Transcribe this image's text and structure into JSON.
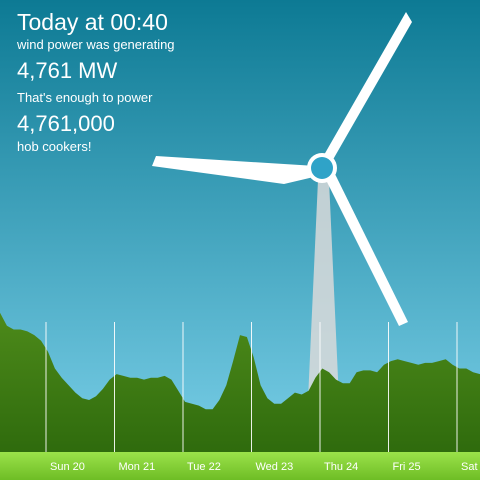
{
  "headline": {
    "time_label": "Today at 00:40",
    "generating_label": "wind power was generating",
    "power_value": "4,761 MW",
    "enough_label": "That's enough to power",
    "appliance_count": "4,761,000",
    "appliance_label": "hob cookers!"
  },
  "colors": {
    "sky_top": "#0d7a94",
    "sky_bottom": "#7fd3ec",
    "hill_top": "#4d8a1a",
    "hill_bottom": "#2f6b0d",
    "ground": "#8cd63a",
    "turbine": "#ffffff",
    "beam": "#d9d9d9"
  },
  "timeline": {
    "days": [
      "Sun 20",
      "Mon 21",
      "Tue 22",
      "Wed 23",
      "Thu 24",
      "Fri 25",
      "Sat"
    ]
  },
  "chart_data": {
    "type": "area",
    "x_labels": [
      "Sun 20",
      "Mon 21",
      "Tue 22",
      "Wed 23",
      "Thu 24",
      "Fri 25",
      "Sat"
    ],
    "values": [
      0.75,
      0.68,
      0.66,
      0.66,
      0.65,
      0.63,
      0.6,
      0.54,
      0.45,
      0.4,
      0.36,
      0.32,
      0.29,
      0.28,
      0.3,
      0.34,
      0.39,
      0.42,
      0.41,
      0.4,
      0.4,
      0.39,
      0.4,
      0.4,
      0.41,
      0.39,
      0.33,
      0.27,
      0.26,
      0.25,
      0.23,
      0.23,
      0.28,
      0.36,
      0.49,
      0.63,
      0.62,
      0.51,
      0.36,
      0.29,
      0.26,
      0.26,
      0.29,
      0.32,
      0.31,
      0.33,
      0.4,
      0.45,
      0.43,
      0.39,
      0.37,
      0.37,
      0.43,
      0.44,
      0.44,
      0.43,
      0.47,
      0.49,
      0.5,
      0.49,
      0.48,
      0.47,
      0.48,
      0.48,
      0.49,
      0.5,
      0.47,
      0.45,
      0.45,
      0.43,
      0.42
    ]
  }
}
